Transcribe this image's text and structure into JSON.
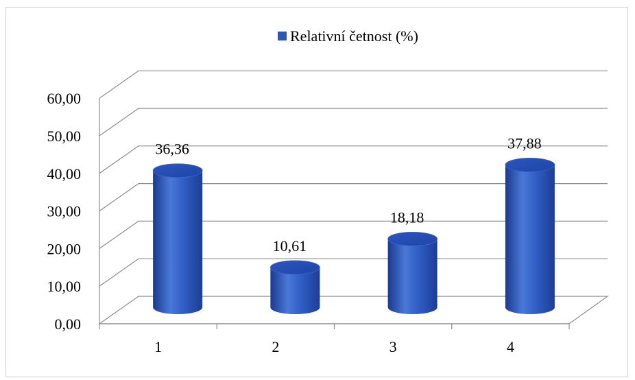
{
  "chart_data": {
    "type": "bar",
    "title": "",
    "xlabel": "",
    "ylabel": "",
    "categories": [
      "1",
      "2",
      "3",
      "4"
    ],
    "series": [
      {
        "name": "Relativní četnost (%)",
        "values": [
          36.36,
          10.61,
          18.18,
          37.88
        ],
        "color": "#2f55b8"
      }
    ],
    "data_labels": [
      "36,36",
      "10,61",
      "18,18",
      "37,88"
    ],
    "yticks": [
      "0,00",
      "10,00",
      "20,00",
      "30,00",
      "40,00",
      "50,00",
      "60,00"
    ],
    "ylim": [
      0,
      60
    ],
    "grid": true,
    "legend_position": "top",
    "style": "3d-cylinder"
  }
}
